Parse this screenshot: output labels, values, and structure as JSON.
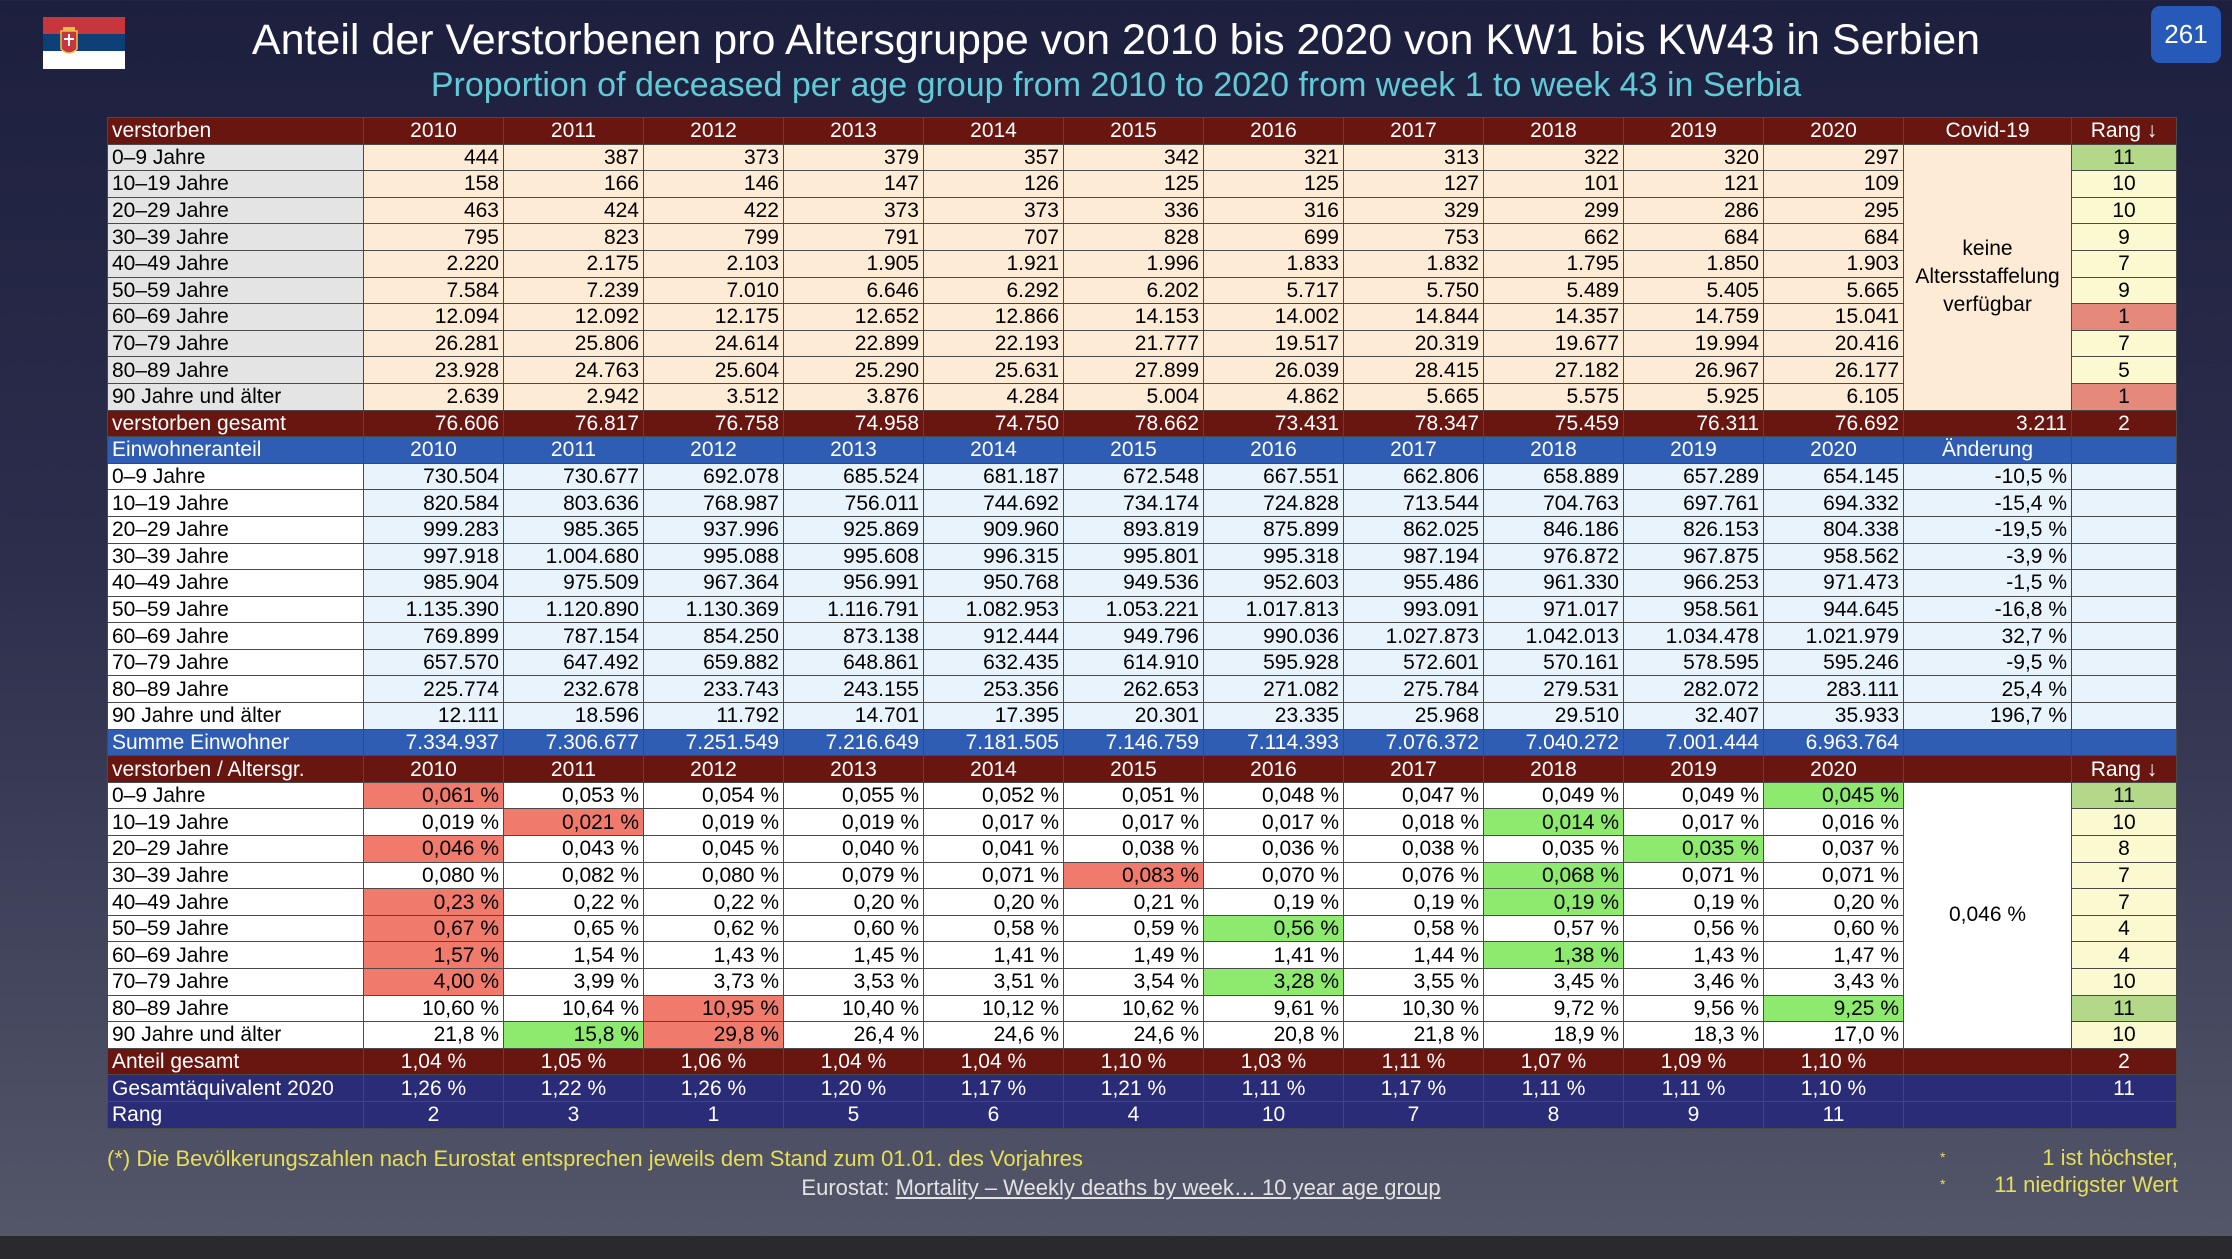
{
  "header": {
    "badge": "261",
    "title": "Anteil der Verstorbenen pro Altersgruppe von 2010 bis 2020 von KW1 bis KW43 in Serbien",
    "subtitle": "Proportion of deceased per age group from 2010 to 2020 from week 1 to week 43 in Serbia"
  },
  "table": {
    "deaths": {
      "header": [
        "verstorben",
        "2010",
        "2011",
        "2012",
        "2013",
        "2014",
        "2015",
        "2016",
        "2017",
        "2018",
        "2019",
        "2020",
        "Covid-19",
        "Rang ↓"
      ],
      "rows": [
        {
          "label": "0–9 Jahre",
          "values": [
            "444",
            "387",
            "373",
            "379",
            "357",
            "342",
            "321",
            "313",
            "322",
            "320",
            "297"
          ],
          "rank": "11"
        },
        {
          "label": "10–19 Jahre",
          "values": [
            "158",
            "166",
            "146",
            "147",
            "126",
            "125",
            "125",
            "127",
            "101",
            "121",
            "109"
          ],
          "rank": "10"
        },
        {
          "label": "20–29 Jahre",
          "values": [
            "463",
            "424",
            "422",
            "373",
            "373",
            "336",
            "316",
            "329",
            "299",
            "286",
            "295"
          ],
          "rank": "10"
        },
        {
          "label": "30–39 Jahre",
          "values": [
            "795",
            "823",
            "799",
            "791",
            "707",
            "828",
            "699",
            "753",
            "662",
            "684",
            "684"
          ],
          "rank": "9"
        },
        {
          "label": "40–49 Jahre",
          "values": [
            "2.220",
            "2.175",
            "2.103",
            "1.905",
            "1.921",
            "1.996",
            "1.833",
            "1.832",
            "1.795",
            "1.850",
            "1.903"
          ],
          "rank": "7"
        },
        {
          "label": "50–59 Jahre",
          "values": [
            "7.584",
            "7.239",
            "7.010",
            "6.646",
            "6.292",
            "6.202",
            "5.717",
            "5.750",
            "5.489",
            "5.405",
            "5.665"
          ],
          "rank": "9"
        },
        {
          "label": "60–69 Jahre",
          "values": [
            "12.094",
            "12.092",
            "12.175",
            "12.652",
            "12.866",
            "14.153",
            "14.002",
            "14.844",
            "14.357",
            "14.759",
            "15.041"
          ],
          "rank": "1"
        },
        {
          "label": "70–79 Jahre",
          "values": [
            "26.281",
            "25.806",
            "24.614",
            "22.899",
            "22.193",
            "21.777",
            "19.517",
            "20.319",
            "19.677",
            "19.994",
            "20.416"
          ],
          "rank": "7"
        },
        {
          "label": "80–89 Jahre",
          "values": [
            "23.928",
            "24.763",
            "25.604",
            "25.290",
            "25.631",
            "27.899",
            "26.039",
            "28.415",
            "27.182",
            "26.967",
            "26.177"
          ],
          "rank": "5"
        },
        {
          "label": "90 Jahre und älter",
          "values": [
            "2.639",
            "2.942",
            "3.512",
            "3.876",
            "4.284",
            "5.004",
            "4.862",
            "5.665",
            "5.575",
            "5.925",
            "6.105"
          ],
          "rank": "1"
        }
      ],
      "note": "keine Altersstaffelung verfügbar",
      "total": {
        "label": "verstorben gesamt",
        "values": [
          "76.606",
          "76.817",
          "76.758",
          "74.958",
          "74.750",
          "78.662",
          "73.431",
          "78.347",
          "75.459",
          "76.311",
          "76.692"
        ],
        "covid": "3.211",
        "rank": "2"
      }
    },
    "population": {
      "header": [
        "Einwohneranteil",
        "2010",
        "2011",
        "2012",
        "2013",
        "2014",
        "2015",
        "2016",
        "2017",
        "2018",
        "2019",
        "2020",
        "Änderung"
      ],
      "rows": [
        {
          "label": "0–9 Jahre",
          "values": [
            "730.504",
            "730.677",
            "692.078",
            "685.524",
            "681.187",
            "672.548",
            "667.551",
            "662.806",
            "658.889",
            "657.289",
            "654.145"
          ],
          "change": "-10,5 %"
        },
        {
          "label": "10–19 Jahre",
          "values": [
            "820.584",
            "803.636",
            "768.987",
            "756.011",
            "744.692",
            "734.174",
            "724.828",
            "713.544",
            "704.763",
            "697.761",
            "694.332"
          ],
          "change": "-15,4 %"
        },
        {
          "label": "20–29 Jahre",
          "values": [
            "999.283",
            "985.365",
            "937.996",
            "925.869",
            "909.960",
            "893.819",
            "875.899",
            "862.025",
            "846.186",
            "826.153",
            "804.338"
          ],
          "change": "-19,5 %"
        },
        {
          "label": "30–39 Jahre",
          "values": [
            "997.918",
            "1.004.680",
            "995.088",
            "995.608",
            "996.315",
            "995.801",
            "995.318",
            "987.194",
            "976.872",
            "967.875",
            "958.562"
          ],
          "change": "-3,9 %"
        },
        {
          "label": "40–49 Jahre",
          "values": [
            "985.904",
            "975.509",
            "967.364",
            "956.991",
            "950.768",
            "949.536",
            "952.603",
            "955.486",
            "961.330",
            "966.253",
            "971.473"
          ],
          "change": "-1,5 %"
        },
        {
          "label": "50–59 Jahre",
          "values": [
            "1.135.390",
            "1.120.890",
            "1.130.369",
            "1.116.791",
            "1.082.953",
            "1.053.221",
            "1.017.813",
            "993.091",
            "971.017",
            "958.561",
            "944.645"
          ],
          "change": "-16,8 %"
        },
        {
          "label": "60–69 Jahre",
          "values": [
            "769.899",
            "787.154",
            "854.250",
            "873.138",
            "912.444",
            "949.796",
            "990.036",
            "1.027.873",
            "1.042.013",
            "1.034.478",
            "1.021.979"
          ],
          "change": "32,7 %"
        },
        {
          "label": "70–79 Jahre",
          "values": [
            "657.570",
            "647.492",
            "659.882",
            "648.861",
            "632.435",
            "614.910",
            "595.928",
            "572.601",
            "570.161",
            "578.595",
            "595.246"
          ],
          "change": "-9,5 %"
        },
        {
          "label": "80–89 Jahre",
          "values": [
            "225.774",
            "232.678",
            "233.743",
            "243.155",
            "253.356",
            "262.653",
            "271.082",
            "275.784",
            "279.531",
            "282.072",
            "283.111"
          ],
          "change": "25,4 %"
        },
        {
          "label": "90 Jahre und älter",
          "values": [
            "12.111",
            "18.596",
            "11.792",
            "14.701",
            "17.395",
            "20.301",
            "23.335",
            "25.968",
            "29.510",
            "32.407",
            "35.933"
          ],
          "change": "196,7 %"
        }
      ],
      "total": {
        "label": "Summe Einwohner",
        "values": [
          "7.334.937",
          "7.306.677",
          "7.251.549",
          "7.216.649",
          "7.181.505",
          "7.146.759",
          "7.114.393",
          "7.076.372",
          "7.040.272",
          "7.001.444",
          "6.963.764"
        ]
      }
    },
    "share": {
      "header": [
        "verstorben / Altersgr.",
        "2010",
        "2011",
        "2012",
        "2013",
        "2014",
        "2015",
        "2016",
        "2017",
        "2018",
        "2019",
        "2020",
        "Rang ↓"
      ],
      "rows": [
        {
          "label": "0–9 Jahre",
          "values": [
            "0,061 %",
            "0,053 %",
            "0,054 %",
            "0,055 %",
            "0,052 %",
            "0,051 %",
            "0,048 %",
            "0,047 %",
            "0,049 %",
            "0,049 %",
            "0,045 %"
          ],
          "rank": "11"
        },
        {
          "label": "10–19 Jahre",
          "values": [
            "0,019 %",
            "0,021 %",
            "0,019 %",
            "0,019 %",
            "0,017 %",
            "0,017 %",
            "0,017 %",
            "0,018 %",
            "0,014 %",
            "0,017 %",
            "0,016 %"
          ],
          "rank": "10"
        },
        {
          "label": "20–29 Jahre",
          "values": [
            "0,046 %",
            "0,043 %",
            "0,045 %",
            "0,040 %",
            "0,041 %",
            "0,038 %",
            "0,036 %",
            "0,038 %",
            "0,035 %",
            "0,035 %",
            "0,037 %"
          ],
          "rank": "8"
        },
        {
          "label": "30–39 Jahre",
          "values": [
            "0,080 %",
            "0,082 %",
            "0,080 %",
            "0,079 %",
            "0,071 %",
            "0,083 %",
            "0,070 %",
            "0,076 %",
            "0,068 %",
            "0,071 %",
            "0,071 %"
          ],
          "rank": "7"
        },
        {
          "label": "40–49 Jahre",
          "values": [
            "0,23 %",
            "0,22 %",
            "0,22 %",
            "0,20 %",
            "0,20 %",
            "0,21 %",
            "0,19 %",
            "0,19 %",
            "0,19 %",
            "0,19 %",
            "0,20 %"
          ],
          "rank": "7"
        },
        {
          "label": "50–59 Jahre",
          "values": [
            "0,67 %",
            "0,65 %",
            "0,62 %",
            "0,60 %",
            "0,58 %",
            "0,59 %",
            "0,56 %",
            "0,58 %",
            "0,57 %",
            "0,56 %",
            "0,60 %"
          ],
          "rank": "4"
        },
        {
          "label": "60–69 Jahre",
          "values": [
            "1,57 %",
            "1,54 %",
            "1,43 %",
            "1,45 %",
            "1,41 %",
            "1,49 %",
            "1,41 %",
            "1,44 %",
            "1,38 %",
            "1,43 %",
            "1,47 %"
          ],
          "rank": "4"
        },
        {
          "label": "70–79 Jahre",
          "values": [
            "4,00 %",
            "3,99 %",
            "3,73 %",
            "3,53 %",
            "3,51 %",
            "3,54 %",
            "3,28 %",
            "3,55 %",
            "3,45 %",
            "3,46 %",
            "3,43 %"
          ],
          "rank": "10"
        },
        {
          "label": "80–89 Jahre",
          "values": [
            "10,60 %",
            "10,64 %",
            "10,95 %",
            "10,40 %",
            "10,12 %",
            "10,62 %",
            "9,61 %",
            "10,30 %",
            "9,72 %",
            "9,56 %",
            "9,25 %"
          ],
          "rank": "11"
        },
        {
          "label": "90 Jahre und älter",
          "values": [
            "21,8 %",
            "15,8 %",
            "29,8 %",
            "26,4 %",
            "24,6 %",
            "24,6 %",
            "20,8 %",
            "21,8 %",
            "18,9 %",
            "18,3 %",
            "17,0 %"
          ],
          "rank": "10"
        }
      ],
      "note": "0,046 %",
      "totals": [
        {
          "label": "Anteil gesamt",
          "values": [
            "1,04 %",
            "1,05 %",
            "1,06 %",
            "1,04 %",
            "1,04 %",
            "1,10 %",
            "1,03 %",
            "1,11 %",
            "1,07 %",
            "1,09 %",
            "1,10 %"
          ],
          "rank": "2"
        },
        {
          "label": "Gesamtäquivalent 2020",
          "values": [
            "1,26 %",
            "1,22 %",
            "1,26 %",
            "1,20 %",
            "1,17 %",
            "1,21 %",
            "1,11 %",
            "1,17 %",
            "1,11 %",
            "1,11 %",
            "1,10 %"
          ],
          "rank": "11"
        },
        {
          "label": "Rang",
          "values": [
            "2",
            "3",
            "1",
            "5",
            "6",
            "4",
            "10",
            "7",
            "8",
            "9",
            "11"
          ]
        }
      ]
    }
  },
  "footer": {
    "footnote": "(*) Die Bevölkerungszahlen nach Eurostat entsprechen jeweils dem Stand zum 01.01. des Vorjahres",
    "source_prefix": "Eurostat:",
    "source_link": "Mortality – Weekly deaths by week… 10 year age group",
    "legend": [
      {
        "marker": "*",
        "text": "1 ist höchster,"
      },
      {
        "marker": "*",
        "text": "11 niedrigster Wert"
      }
    ]
  }
}
